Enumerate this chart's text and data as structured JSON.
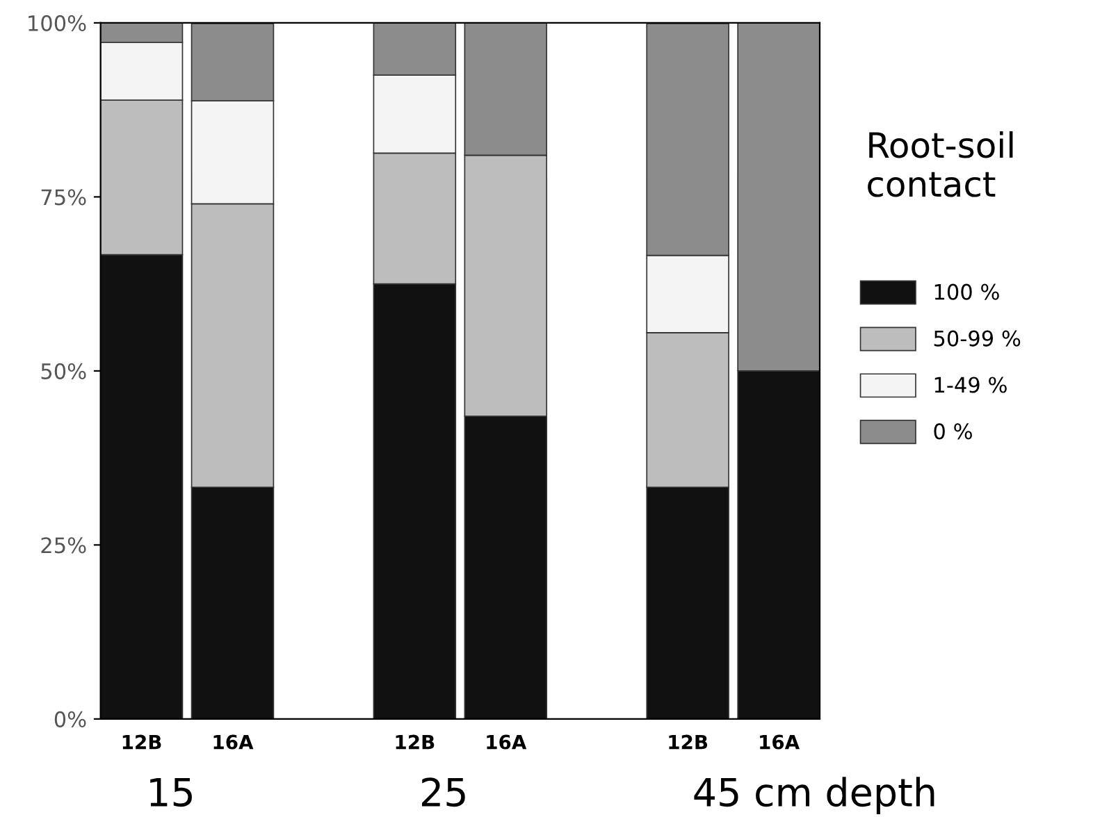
{
  "chart_data": {
    "type": "bar",
    "stacked": true,
    "legend_title": "Root-soil contact",
    "legend": "right",
    "categories": [
      "12B",
      "16A",
      null,
      "12B",
      "16A",
      null,
      "12B",
      "16A"
    ],
    "series": [
      {
        "name": "100 %",
        "color": "#111111",
        "values": [
          66.7,
          33.3,
          null,
          62.5,
          43.5,
          null,
          33.3,
          50
        ]
      },
      {
        "name": "50-99 %",
        "color": "#bdbdbd",
        "values": [
          22.2,
          40.7,
          null,
          18.8,
          37.5,
          null,
          22.2,
          0
        ]
      },
      {
        "name": "1-49 %",
        "color": "#f4f4f4",
        "values": [
          8.3,
          14.8,
          null,
          11.2,
          0,
          null,
          11.1,
          0
        ]
      },
      {
        "name": "0 %",
        "color": "#8c8c8c",
        "values": [
          2.8,
          11.1,
          null,
          7.5,
          19,
          null,
          33.3,
          50
        ]
      }
    ],
    "ylim": [
      0,
      100
    ],
    "yticks": [
      {
        "value": 0,
        "label": "0%"
      },
      {
        "value": 25,
        "label": "25%"
      },
      {
        "value": 50,
        "label": "50%"
      },
      {
        "value": 75,
        "label": "75%"
      },
      {
        "value": 100,
        "label": "100%"
      }
    ],
    "annotations": [
      "15",
      "25",
      "45 cm depth"
    ]
  }
}
